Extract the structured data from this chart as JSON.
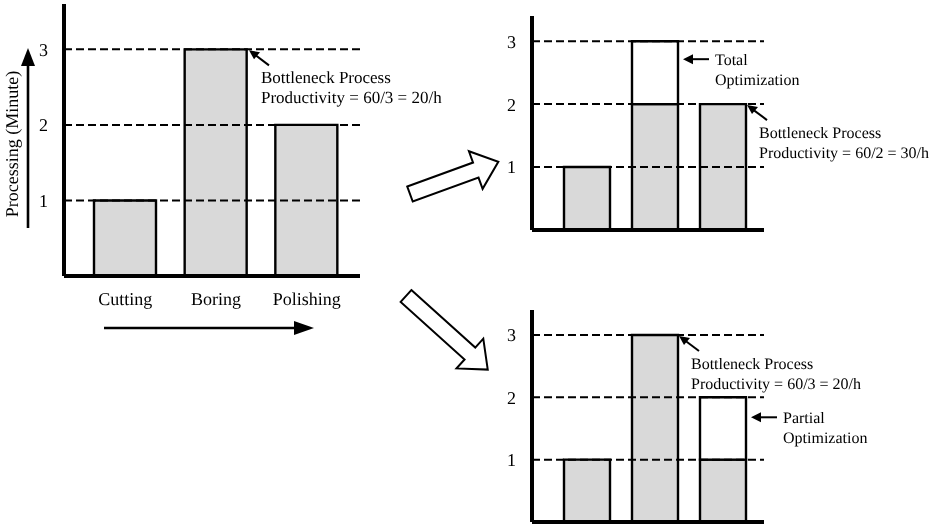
{
  "chart_data": [
    {
      "type": "bar",
      "ylabel": "Processing (Minute)",
      "categories": [
        "Cutting",
        "Boring",
        "Polishing"
      ],
      "series": [
        {
          "color": "#d9d9d9",
          "values": [
            1,
            3,
            2
          ]
        }
      ],
      "ylim": [
        0,
        3.6
      ],
      "yticks": [
        1,
        2,
        3
      ],
      "grid": "y",
      "annotations": [
        {
          "text": "Bottleneck Process Productivity = 60/3 = 20/h",
          "x": "Boring",
          "y": 3
        }
      ]
    },
    {
      "type": "bar",
      "stacked": true,
      "categories": [
        null,
        null,
        null
      ],
      "series": [
        {
          "color": "#d9d9d9",
          "values": [
            1,
            2,
            2
          ]
        },
        {
          "color": "#ffffff",
          "values": [
            null,
            1,
            null
          ]
        }
      ],
      "ylim": [
        0,
        3.4
      ],
      "yticks": [
        1,
        2,
        3
      ],
      "grid": "y",
      "tick_labels": "y",
      "annotations": [
        "Total Optimization",
        "Bottleneck Process Productivity = 60/2 = 30/h"
      ]
    },
    {
      "type": "bar",
      "stacked": true,
      "categories": [
        null,
        null,
        null
      ],
      "series": [
        {
          "color": "#d9d9d9",
          "values": [
            1,
            3,
            1
          ]
        },
        {
          "color": "#ffffff",
          "values": [
            null,
            null,
            1
          ]
        }
      ],
      "ylim": [
        0,
        3.4
      ],
      "yticks": [
        1,
        2,
        3
      ],
      "grid": "y",
      "tick_labels": "y",
      "annotations": [
        "Bottleneck Process Productivity = 60/3 = 20/h",
        "Partial Optimization"
      ]
    }
  ]
}
